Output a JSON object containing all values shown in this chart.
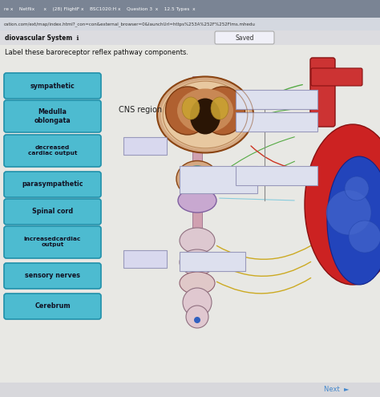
{
  "title": "Label these baroreceptor reflex pathway components.",
  "browser_bar": "re x    Netflix      x    (28) FlightF x    BSC1020:H x    Question 3  x    12.5 Types  x",
  "url_bar": "cation.com/ext/map/index.html?_con=con&external_browser=0&launchUrl=https%253A%252F%252Flms.mhedu",
  "page_title": "diovascular System",
  "saved_label": "Saved",
  "bg_color": "#c8c8cc",
  "tab_bar_color": "#6e7a8a",
  "url_bar_color": "#dde0e8",
  "content_bg": "#e8e8e4",
  "button_color": "#4dbbd0",
  "button_text_color": "#111122",
  "button_border_color": "#2090aa",
  "labels": [
    "sympathetic",
    "Medulla\noblongata",
    "decreased\ncardiac output",
    "parasympathetic",
    "Spinal cord",
    "increasedcardiac\noutput",
    "sensory nerves",
    "Cerebrum"
  ],
  "cns_label": "CNS region",
  "figsize": [
    4.74,
    4.95
  ],
  "dpi": 100
}
